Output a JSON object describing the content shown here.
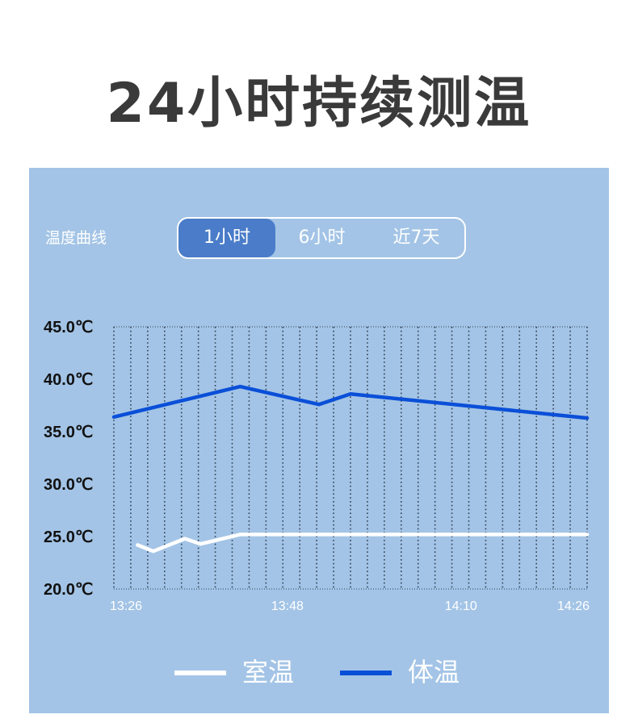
{
  "page": {
    "title": "24小时持续测温"
  },
  "panel": {
    "chart_label": "温度曲线",
    "tabs": [
      {
        "label": "1小时",
        "active": true
      },
      {
        "label": "6小时",
        "active": false
      },
      {
        "label": "近7天",
        "active": false
      }
    ],
    "legend": [
      {
        "name": "室温",
        "color": "#ffffff"
      },
      {
        "name": "体温",
        "color": "#0a4fd8"
      }
    ],
    "colors": {
      "panel_bg": "#a3c4e6",
      "tab_active": "#4a7cc9",
      "grid": "#2f3e55"
    }
  },
  "chart_data": {
    "type": "line",
    "x_unit": "minutes",
    "xlim": [
      "13:26",
      "14:26"
    ],
    "x_tick_labels": [
      "13:26",
      "13:48",
      "14:10",
      "14:26"
    ],
    "x_tick_values": [
      "13:26",
      "13:48",
      "14:10",
      "14:26"
    ],
    "ylim": [
      20,
      45
    ],
    "y_tick_labels": [
      "45.0℃",
      "40.0℃",
      "35.0℃",
      "30.0℃",
      "25.0℃",
      "20.0℃"
    ],
    "y_ticks": [
      45,
      40,
      35,
      30,
      25,
      20
    ],
    "grid": "vertical-dotted",
    "series": [
      {
        "name": "体温",
        "color": "#0a4fd8",
        "points": [
          {
            "x": "13:26",
            "y": 36.4
          },
          {
            "x": "13:42",
            "y": 39.3
          },
          {
            "x": "13:52",
            "y": 37.6
          },
          {
            "x": "13:56",
            "y": 38.6
          },
          {
            "x": "14:26",
            "y": 36.3
          }
        ]
      },
      {
        "name": "室温",
        "color": "#ffffff",
        "points": [
          {
            "x": "13:29",
            "y": 24.2
          },
          {
            "x": "13:31",
            "y": 23.6
          },
          {
            "x": "13:35",
            "y": 24.8
          },
          {
            "x": "13:37",
            "y": 24.3
          },
          {
            "x": "13:42",
            "y": 25.2
          },
          {
            "x": "14:26",
            "y": 25.2
          }
        ]
      }
    ]
  }
}
